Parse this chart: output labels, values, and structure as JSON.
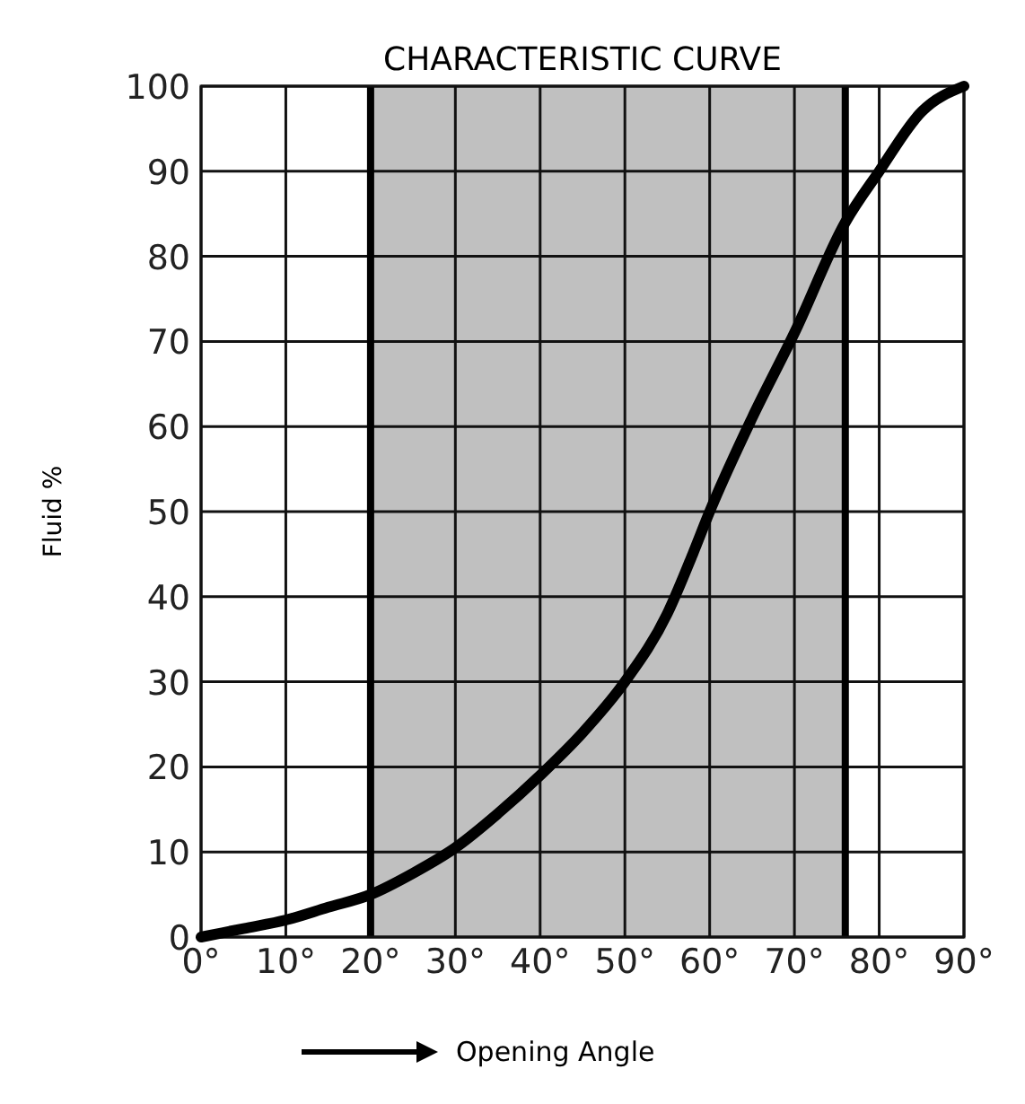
{
  "chart_data": {
    "type": "line",
    "title": "CHARACTERISTIC CURVE",
    "xlabel": "Opening Angle",
    "ylabel": "Fluid %",
    "x": [
      0,
      5,
      10,
      15,
      20,
      25,
      30,
      35,
      40,
      45,
      50,
      55,
      58,
      60,
      65,
      70,
      76,
      80,
      85,
      90
    ],
    "series": [
      {
        "color": "#000000",
        "values": [
          0,
          1,
          2,
          3.5,
          5,
          7.5,
          10.5,
          14.5,
          19,
          24,
          30,
          38,
          45,
          50,
          61,
          71,
          84,
          90,
          97,
          100
        ]
      }
    ],
    "xlim": [
      0,
      90
    ],
    "ylim": [
      0,
      100
    ],
    "xticks": [
      {
        "value": 0,
        "label": "0°"
      },
      {
        "value": 10,
        "label": "10°"
      },
      {
        "value": 20,
        "label": "20°"
      },
      {
        "value": 30,
        "label": "30°"
      },
      {
        "value": 40,
        "label": "40°"
      },
      {
        "value": 50,
        "label": "50°"
      },
      {
        "value": 60,
        "label": "60°"
      },
      {
        "value": 70,
        "label": "70°"
      },
      {
        "value": 80,
        "label": "80°"
      },
      {
        "value": 90,
        "label": "90°"
      }
    ],
    "yticks": [
      0,
      10,
      20,
      30,
      40,
      50,
      60,
      70,
      80,
      90,
      100
    ],
    "bands": [
      {
        "axis": "x",
        "from": 20,
        "to": 76,
        "color": "#c0c0c0"
      }
    ],
    "ref_lines": [
      {
        "axis": "x",
        "value": 20,
        "color": "#000000"
      },
      {
        "axis": "x",
        "value": 76,
        "color": "#000000"
      }
    ],
    "grid": true,
    "marker": "none",
    "line_style": "solid"
  }
}
